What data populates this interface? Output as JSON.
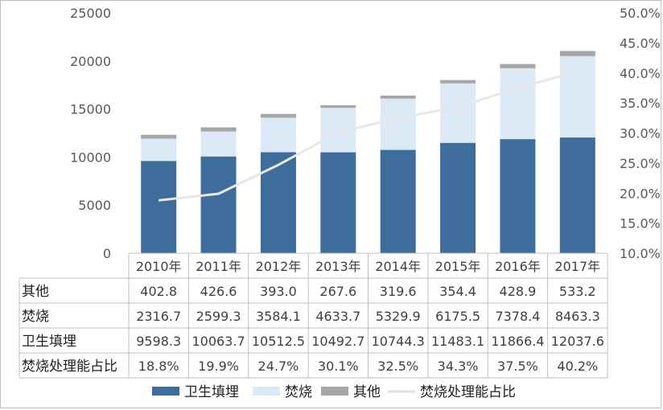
{
  "chart_data": {
    "type": "bar",
    "stacked": true,
    "categories": [
      "2010年",
      "2011年",
      "2012年",
      "2013年",
      "2014年",
      "2015年",
      "2016年",
      "2017年"
    ],
    "series": [
      {
        "name": "卫生填埋",
        "kind": "bar",
        "color": "#3f6d9b",
        "values": [
          9598.3,
          10063.7,
          10512.5,
          10492.7,
          10744.3,
          11483.1,
          11866.4,
          12037.6
        ],
        "display": [
          "9598.3",
          "10063.7",
          "10512.5",
          "10492.7",
          "10744.3",
          "11483.1",
          "11866.4",
          "12037.6"
        ]
      },
      {
        "name": "焚烧",
        "kind": "bar",
        "color": "#dce9f6",
        "values": [
          2316.7,
          2599.3,
          3584.1,
          4633.7,
          5329.9,
          6175.5,
          7378.4,
          8463.3
        ],
        "display": [
          "2316.7",
          "2599.3",
          "3584.1",
          "4633.7",
          "5329.9",
          "6175.5",
          "7378.4",
          "8463.3"
        ]
      },
      {
        "name": "其他",
        "kind": "bar",
        "color": "#a6a6a6",
        "values": [
          402.8,
          426.6,
          393.0,
          267.6,
          319.6,
          354.4,
          428.9,
          533.2
        ],
        "display": [
          "402.8",
          "426.6",
          "393.0",
          "267.6",
          "319.6",
          "354.4",
          "428.9",
          "533.2"
        ]
      },
      {
        "name": "焚烧处理能占比",
        "kind": "line",
        "axis": "right",
        "color": "#f2f2f2",
        "values": [
          18.8,
          19.9,
          24.7,
          30.1,
          32.5,
          34.3,
          37.5,
          40.2
        ],
        "display": [
          "18.8%",
          "19.9%",
          "24.7%",
          "30.1%",
          "32.5%",
          "34.3%",
          "37.5%",
          "40.2%"
        ]
      }
    ],
    "table_rows": [
      "其他",
      "焚烧",
      "卫生填埋",
      "焚烧处理能占比"
    ],
    "legend_order": [
      "卫生填埋",
      "焚烧",
      "其他",
      "焚烧处理能占比"
    ],
    "ylim": [
      0,
      25000
    ],
    "yticks": [
      "0",
      "5000",
      "10000",
      "15000",
      "20000",
      "25000"
    ],
    "y2lim": [
      10,
      50
    ],
    "y2ticks": [
      "10.0%",
      "15.0%",
      "20.0%",
      "25.0%",
      "30.0%",
      "35.0%",
      "40.0%",
      "45.0%",
      "50.0%"
    ],
    "legend_position": "bottom",
    "grid": false
  }
}
